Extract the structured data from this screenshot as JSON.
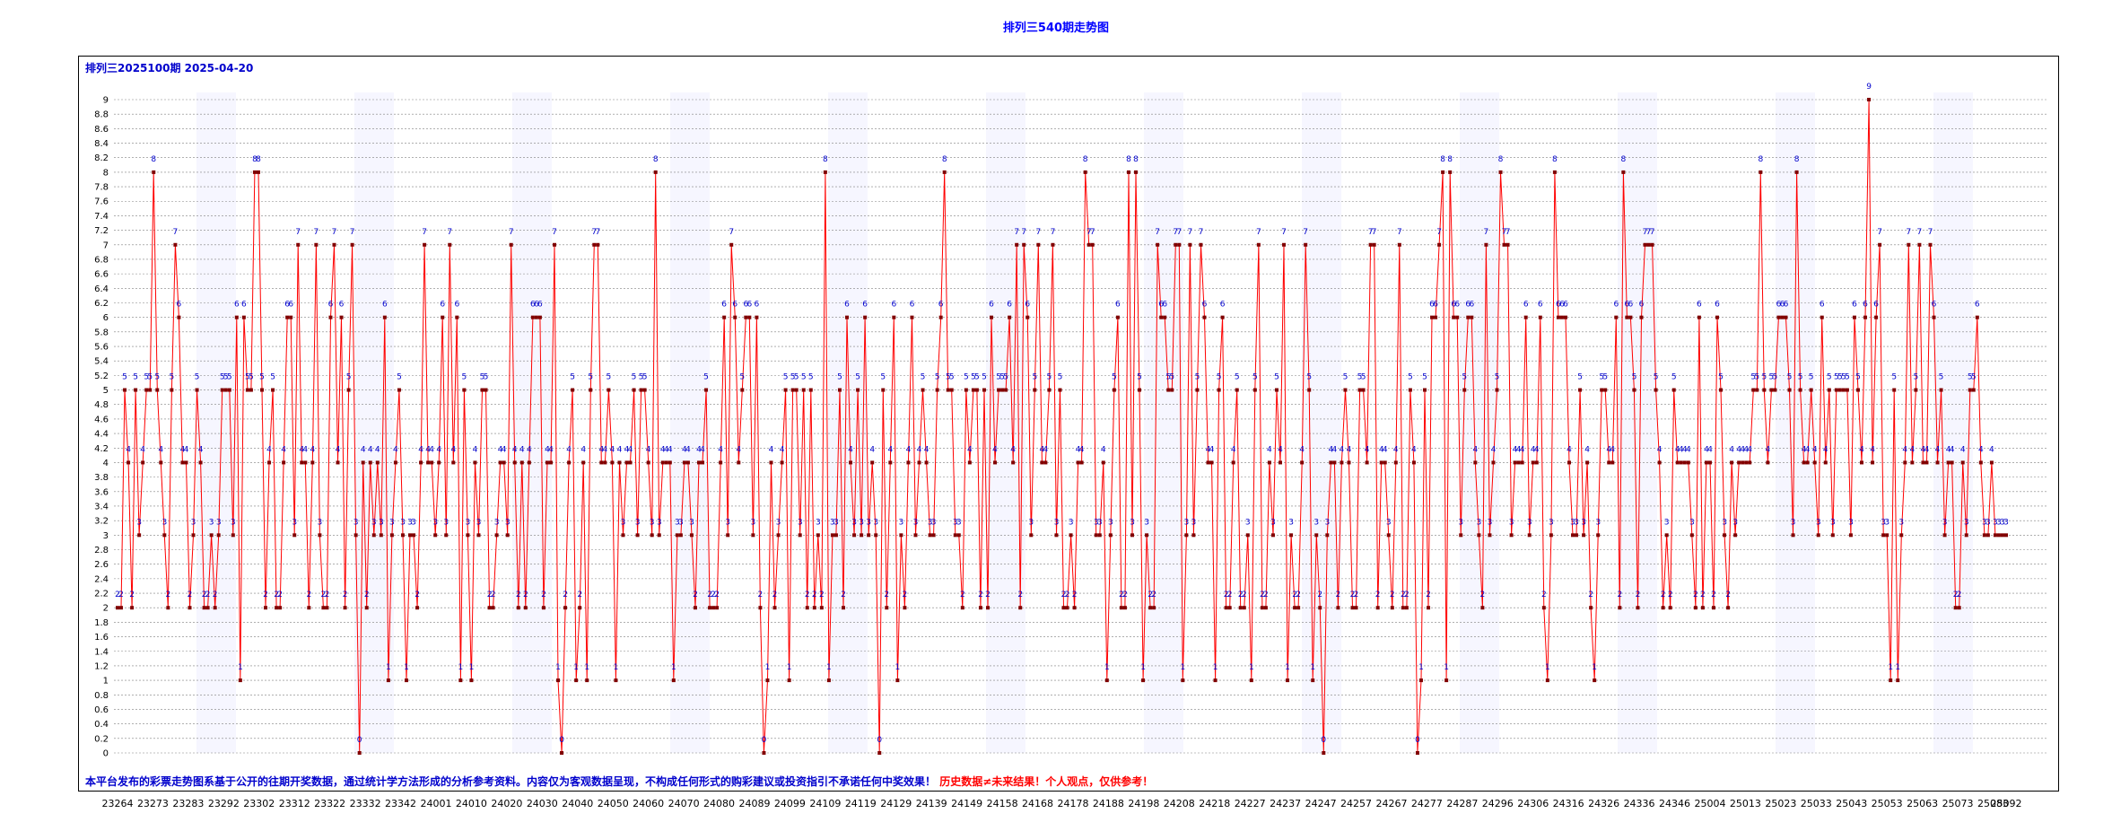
{
  "page": {
    "title": "排列三540期走势图",
    "subtitle": "排列三2025100期 2025-04-20",
    "disclaimer_blue": "本平台发布的彩票走势图系基于公开的往期开奖数据，通过统计学方法形成的分析参考资料。内容仅为客观数据呈现，不构成任何形式的购彩建议或投资指引不承诺任何中奖效果！",
    "disclaimer_red": "历史数据≠未来结果！个人观点，仅供参考！"
  },
  "colors": {
    "line": "#ff0000",
    "marker": "#800000",
    "value_label": "#0000cc",
    "grid": "#808080",
    "band": "#eeeeff"
  },
  "chart_data": {
    "type": "line",
    "title": "排列三540期走势图",
    "xlabel": "",
    "ylabel": "",
    "ylim": [
      0,
      9
    ],
    "ytick_step": 0.2,
    "grid": true,
    "x_ticks": [
      "23264",
      "23273",
      "23283",
      "23292",
      "23302",
      "23312",
      "23322",
      "23332",
      "23342",
      "24001",
      "24010",
      "24020",
      "24030",
      "24040",
      "24050",
      "24060",
      "24070",
      "24080",
      "24089",
      "24099",
      "24109",
      "24119",
      "24129",
      "24139",
      "24149",
      "24158",
      "24168",
      "24178",
      "24188",
      "24198",
      "24208",
      "24218",
      "24227",
      "24237",
      "24247",
      "24257",
      "24267",
      "24277",
      "24287",
      "24296",
      "24306",
      "24316",
      "24326",
      "24336",
      "24346",
      "25004",
      "25013",
      "25023",
      "25033",
      "25043",
      "25053",
      "25063",
      "25073",
      "25083",
      "25092"
    ],
    "x_first_issue_index": 0,
    "issues_per_tick": 9.8,
    "values": [
      2,
      2,
      5,
      4,
      2,
      5,
      3,
      4,
      5,
      5,
      8,
      5,
      4,
      3,
      2,
      5,
      7,
      6,
      4,
      4,
      2,
      3,
      5,
      4,
      2,
      2,
      3,
      2,
      3,
      5,
      5,
      5,
      3,
      6,
      1,
      6,
      5,
      5,
      8,
      8,
      5,
      2,
      4,
      5,
      2,
      2,
      4,
      6,
      6,
      3,
      7,
      4,
      4,
      2,
      4,
      7,
      3,
      2,
      2,
      6,
      7,
      4,
      6,
      2,
      5,
      7,
      3,
      0,
      4,
      2,
      4,
      3,
      4,
      3,
      6,
      1,
      3,
      4,
      5,
      3,
      1,
      3,
      3,
      2,
      4,
      7,
      4,
      4,
      3,
      4,
      6,
      3,
      7,
      4,
      6,
      1,
      5,
      3,
      1,
      4,
      3,
      5,
      5,
      2,
      2,
      3,
      4,
      4,
      3,
      7,
      4,
      2,
      4,
      2,
      4,
      6,
      6,
      6,
      2,
      4,
      4,
      7,
      1,
      0,
      2,
      4,
      5,
      1,
      2,
      4,
      1,
      5,
      7,
      7,
      4,
      4,
      5,
      4,
      1,
      4,
      3,
      4,
      4,
      5,
      3,
      5,
      5,
      4,
      3,
      8,
      3,
      4,
      4,
      4,
      1,
      3,
      3,
      4,
      4,
      3,
      2,
      4,
      4,
      5,
      2,
      2,
      2,
      4,
      6,
      3,
      7,
      6,
      4,
      5,
      6,
      6,
      3,
      6,
      2,
      0,
      1,
      4,
      2,
      3,
      4,
      5,
      1,
      5,
      5,
      3,
      5,
      2,
      5,
      2,
      3,
      2,
      8,
      1,
      3,
      3,
      5,
      2,
      6,
      4,
      3,
      5,
      3,
      6,
      3,
      4,
      3,
      0,
      5,
      2,
      4,
      6,
      1,
      3,
      2,
      4,
      6,
      3,
      4,
      5,
      4,
      3,
      3,
      5,
      6,
      8,
      5,
      5,
      3,
      3,
      2,
      5,
      4,
      5,
      5,
      2,
      5,
      2,
      6,
      4,
      5,
      5,
      5,
      6,
      4,
      7,
      2,
      7,
      6,
      3,
      5,
      7,
      4,
      4,
      5,
      7,
      3,
      5,
      2,
      2,
      3,
      2,
      4,
      4,
      8,
      7,
      7,
      3,
      3,
      4,
      1,
      3,
      5,
      6,
      2,
      2,
      8,
      3,
      8,
      5,
      1,
      3,
      2,
      2,
      7,
      6,
      6,
      5,
      5,
      7,
      7,
      1,
      3,
      7,
      3,
      5,
      7,
      6,
      4,
      4,
      1,
      5,
      6,
      2,
      2,
      4,
      5,
      2,
      2,
      3,
      1,
      5,
      7,
      2,
      2,
      4,
      3,
      5,
      4,
      7,
      1,
      3,
      2,
      2,
      4,
      7,
      5,
      1,
      3,
      2,
      0,
      3,
      4,
      4,
      2,
      4,
      5,
      4,
      2,
      2,
      5,
      5,
      4,
      7,
      7,
      2,
      4,
      4,
      3,
      2,
      4,
      7,
      2,
      2,
      5,
      4,
      0,
      1,
      5,
      2,
      6,
      6,
      7,
      8,
      1,
      8,
      6,
      6,
      3,
      5,
      6,
      6,
      4,
      3,
      2,
      7,
      3,
      4,
      5,
      8,
      7,
      7,
      3,
      4,
      4,
      4,
      6,
      3,
      4,
      4,
      6,
      2,
      1,
      3,
      8,
      6,
      6,
      6,
      4,
      3,
      3,
      5,
      3,
      4,
      2,
      1,
      3,
      5,
      5,
      4,
      4,
      6,
      2,
      8,
      6,
      6,
      5,
      2,
      6,
      7,
      7,
      7,
      5,
      4,
      2,
      3,
      2,
      5,
      4,
      4,
      4,
      4,
      3,
      2,
      6,
      2,
      4,
      4,
      2,
      6,
      5,
      3,
      2,
      4,
      3,
      4,
      4,
      4,
      4,
      5,
      5,
      8,
      5,
      4,
      5,
      5,
      6,
      6,
      6,
      5,
      3,
      8,
      5,
      4,
      4,
      5,
      4,
      3,
      6,
      4,
      5,
      3,
      5,
      5,
      5,
      5,
      3,
      6,
      5,
      4,
      6,
      9,
      4,
      6,
      7,
      3,
      3,
      1,
      5,
      1,
      3,
      4,
      7,
      4,
      5,
      7,
      4,
      4,
      7,
      6,
      4,
      5,
      3,
      4,
      4,
      2,
      2,
      4,
      3,
      5,
      5,
      6,
      4,
      3,
      3,
      4,
      3,
      3,
      3,
      3
    ]
  }
}
